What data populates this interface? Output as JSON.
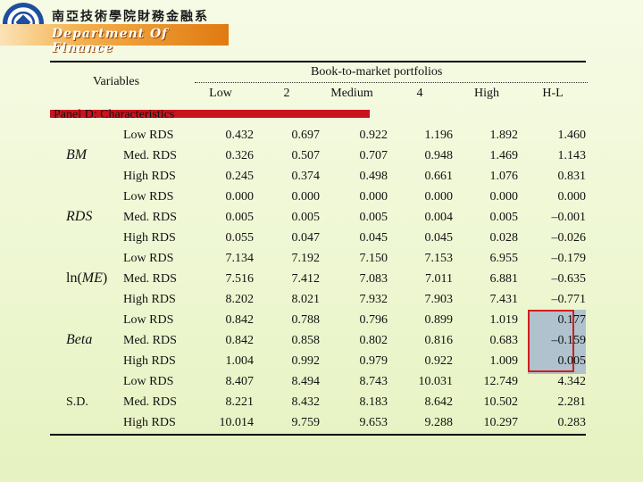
{
  "header": {
    "school_name": "南亞技術學院財務金融系",
    "department": "Department Of Finance"
  },
  "table": {
    "variables_label": "Variables",
    "group_title": "Book-to-market portfolios",
    "columns": [
      "Low",
      "2",
      "Medium",
      "4",
      "High",
      "H-L"
    ],
    "panel_label": "Panel D: Characteristics",
    "groups": [
      {
        "label": "BM",
        "rows": [
          {
            "sub": "Low RDS",
            "values": [
              "0.432",
              "0.697",
              "0.922",
              "1.196",
              "1.892",
              "1.460"
            ]
          },
          {
            "sub": "Med. RDS",
            "values": [
              "0.326",
              "0.507",
              "0.707",
              "0.948",
              "1.469",
              "1.143"
            ]
          },
          {
            "sub": "High RDS",
            "values": [
              "0.245",
              "0.374",
              "0.498",
              "0.661",
              "1.076",
              "0.831"
            ]
          }
        ]
      },
      {
        "label": "RDS",
        "rows": [
          {
            "sub": "Low RDS",
            "values": [
              "0.000",
              "0.000",
              "0.000",
              "0.000",
              "0.000",
              "0.000"
            ]
          },
          {
            "sub": "Med. RDS",
            "values": [
              "0.005",
              "0.005",
              "0.005",
              "0.004",
              "0.005",
              "–0.001"
            ]
          },
          {
            "sub": "High RDS",
            "values": [
              "0.055",
              "0.047",
              "0.045",
              "0.045",
              "0.028",
              "–0.026"
            ]
          }
        ]
      },
      {
        "label": "ln(ME)",
        "rows": [
          {
            "sub": "Low RDS",
            "values": [
              "7.134",
              "7.192",
              "7.150",
              "7.153",
              "6.955",
              "–0.179"
            ]
          },
          {
            "sub": "Med. RDS",
            "values": [
              "7.516",
              "7.412",
              "7.083",
              "7.011",
              "6.881",
              "–0.635"
            ]
          },
          {
            "sub": "High RDS",
            "values": [
              "8.202",
              "8.021",
              "7.932",
              "7.903",
              "7.431",
              "–0.771"
            ]
          }
        ]
      },
      {
        "label": "Beta",
        "rows": [
          {
            "sub": "Low RDS",
            "values": [
              "0.842",
              "0.788",
              "0.796",
              "0.899",
              "1.019",
              "0.177"
            ]
          },
          {
            "sub": "Med. RDS",
            "values": [
              "0.842",
              "0.858",
              "0.802",
              "0.816",
              "0.683",
              "–0.159"
            ]
          },
          {
            "sub": "High RDS",
            "values": [
              "1.004",
              "0.992",
              "0.979",
              "0.922",
              "1.009",
              "0.005"
            ]
          }
        ]
      },
      {
        "label": "S.D.",
        "rows": [
          {
            "sub": "Low RDS",
            "values": [
              "8.407",
              "8.494",
              "8.743",
              "10.031",
              "12.749",
              "4.342"
            ]
          },
          {
            "sub": "Med. RDS",
            "values": [
              "8.221",
              "8.432",
              "8.183",
              "8.642",
              "10.502",
              "2.281"
            ]
          },
          {
            "sub": "High RDS",
            "values": [
              "10.014",
              "9.759",
              "9.653",
              "9.288",
              "10.297",
              "0.283"
            ]
          }
        ]
      }
    ]
  },
  "colors": {
    "panel_bar": "#c8141c",
    "highlight_fill": "#a9bccd",
    "highlight_border": "#d21e1e"
  }
}
